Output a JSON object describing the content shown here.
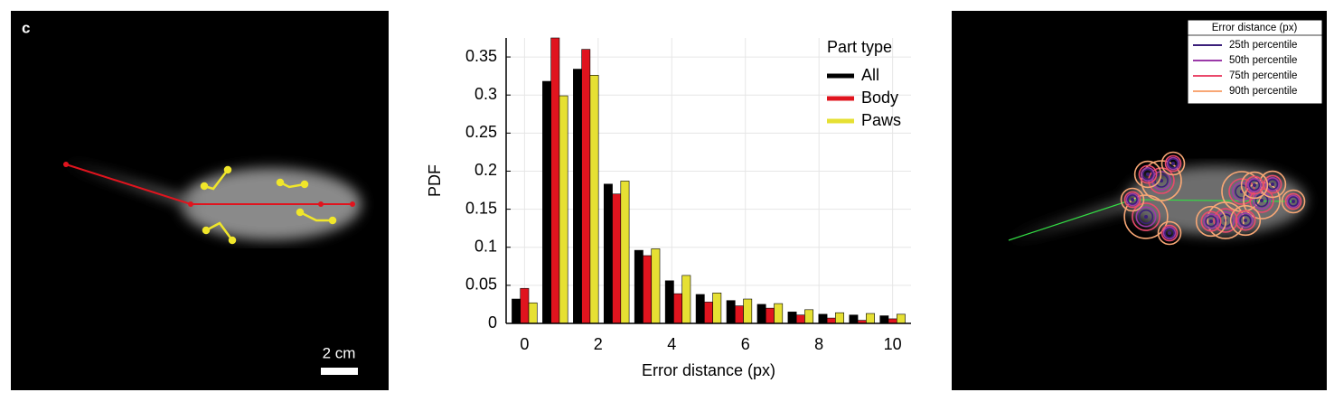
{
  "panel_label": "c",
  "scale_bar": "2 cm",
  "overlay_legend": {
    "title": "Error distance (px)",
    "items": [
      {
        "name": "25th percentile",
        "color": "#3b1f7a"
      },
      {
        "name": "50th percentile",
        "color": "#9b3aa8"
      },
      {
        "name": "75th percentile",
        "color": "#ea4a6c"
      },
      {
        "name": "90th percentile",
        "color": "#f8a775"
      }
    ]
  },
  "chart_data": {
    "type": "bar",
    "xlabel": "Error distance (px)",
    "ylabel": "PDF",
    "x": [
      0,
      0.833,
      1.667,
      2.5,
      3.333,
      4.167,
      5,
      5.833,
      6.667,
      7.5,
      8.333,
      9.167,
      10
    ],
    "series": [
      {
        "name": "All",
        "color": "#000000",
        "values": [
          0.032,
          0.318,
          0.334,
          0.183,
          0.096,
          0.056,
          0.038,
          0.03,
          0.025,
          0.015,
          0.012,
          0.011,
          0.01
        ]
      },
      {
        "name": "Body",
        "color": "#e0141e",
        "values": [
          0.046,
          0.375,
          0.36,
          0.17,
          0.089,
          0.039,
          0.028,
          0.023,
          0.02,
          0.011,
          0.007,
          0.004,
          0.006
        ]
      },
      {
        "name": "Paws",
        "color": "#e6e033",
        "values": [
          0.027,
          0.299,
          0.326,
          0.187,
          0.098,
          0.063,
          0.04,
          0.032,
          0.026,
          0.018,
          0.014,
          0.013,
          0.012
        ]
      }
    ],
    "xlim": [
      -0.5,
      10.5
    ],
    "xticks": [
      0,
      2,
      4,
      6,
      8,
      10
    ],
    "ylim": [
      0,
      0.375
    ],
    "yticks": [
      0,
      0.05,
      0.1,
      0.15,
      0.2,
      0.25,
      0.3,
      0.35
    ],
    "grid": true,
    "legend_title": "Part type",
    "legend": "upper right"
  }
}
